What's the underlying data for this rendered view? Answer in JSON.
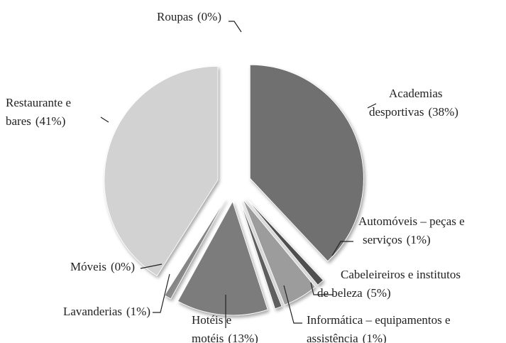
{
  "chart_data": {
    "type": "pie",
    "categories": [
      [
        "Roupas"
      ],
      [
        "Academias",
        "desportivas"
      ],
      [
        "Automóveis – peças e",
        "serviços"
      ],
      [
        "Cabeleireiros e institutos",
        "de beleza"
      ],
      [
        "Informática – equipamentos e",
        "assistência"
      ],
      [
        "Hotéis e",
        "motéis"
      ],
      [
        "Lavanderias"
      ],
      [
        "Móveis"
      ],
      [
        "Restaurante e",
        "bares"
      ]
    ],
    "values": [
      0,
      38,
      1,
      5,
      1,
      13,
      1,
      0,
      41
    ],
    "value_labels": [
      "(0%)",
      "(38%)",
      "(1%)",
      "(5%)",
      "(1%)",
      "(13%)",
      "(1%)",
      "(0%)",
      "(41%)"
    ],
    "colors": [
      "#8a8a8a",
      "#6f6f6f",
      "#4f4f4f",
      "#9c9c9c",
      "#5e5e5e",
      "#7b7b7b",
      "#8c8c8c",
      "#8a8a8a",
      "#d2d2d2"
    ]
  }
}
